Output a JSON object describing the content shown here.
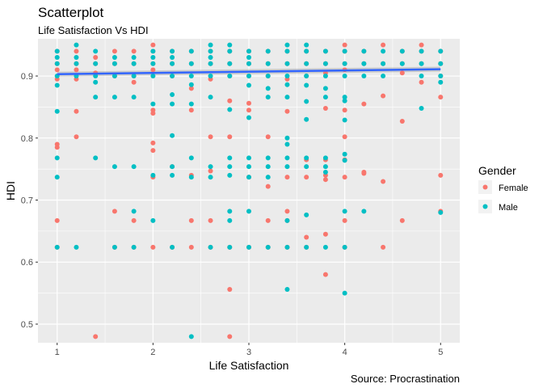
{
  "chart_data": {
    "type": "scatter",
    "title": "Scatterplot",
    "subtitle": "Life Satisfaction Vs HDI",
    "xlabel": "Life Satisfaction",
    "ylabel": "HDI",
    "caption": "Source: Procrastination",
    "xlim": [
      0.8,
      5.2
    ],
    "ylim": [
      0.47,
      0.96
    ],
    "x_ticks": [
      1,
      2,
      3,
      4,
      5
    ],
    "x_tick_labels": [
      "1",
      "2",
      "3",
      "4",
      "5"
    ],
    "y_ticks": [
      0.5,
      0.6,
      0.7,
      0.8,
      0.9
    ],
    "y_tick_labels": [
      "0.5",
      "0.6",
      "0.7",
      "0.8",
      "0.9"
    ],
    "grid": true,
    "legend": {
      "title": "Gender",
      "position": "right",
      "entries": [
        "Female",
        "Male"
      ]
    },
    "colors": {
      "Female": "#F8766D",
      "Male": "#00BFC4",
      "trend": "#3366FF",
      "panel": "#EBEBEB",
      "grid": "#FFFFFF"
    },
    "series": [
      {
        "name": "Female",
        "points": [
          [
            1,
            0.94
          ],
          [
            1,
            0.92
          ],
          [
            1,
            0.91
          ],
          [
            1,
            0.895
          ],
          [
            1,
            0.79
          ],
          [
            1,
            0.785
          ],
          [
            1,
            0.667
          ],
          [
            1,
            0.624
          ],
          [
            1.2,
            0.94
          ],
          [
            1.2,
            0.92
          ],
          [
            1.2,
            0.91
          ],
          [
            1.2,
            0.895
          ],
          [
            1.2,
            0.843
          ],
          [
            1.2,
            0.802
          ],
          [
            1.4,
            0.93
          ],
          [
            1.4,
            0.92
          ],
          [
            1.4,
            0.905
          ],
          [
            1.4,
            0.48
          ],
          [
            1.6,
            0.94
          ],
          [
            1.6,
            0.92
          ],
          [
            1.6,
            0.9
          ],
          [
            1.6,
            0.682
          ],
          [
            1.6,
            0.624
          ],
          [
            1.8,
            0.94
          ],
          [
            1.8,
            0.92
          ],
          [
            1.8,
            0.9
          ],
          [
            1.8,
            0.89
          ],
          [
            1.8,
            0.667
          ],
          [
            1.8,
            0.624
          ],
          [
            2,
            0.95
          ],
          [
            2,
            0.94
          ],
          [
            2,
            0.92
          ],
          [
            2,
            0.91
          ],
          [
            2,
            0.845
          ],
          [
            2,
            0.84
          ],
          [
            2,
            0.792
          ],
          [
            2,
            0.78
          ],
          [
            2,
            0.737
          ],
          [
            2,
            0.624
          ],
          [
            2.2,
            0.94
          ],
          [
            2.2,
            0.92
          ],
          [
            2.2,
            0.9
          ],
          [
            2.2,
            0.754
          ],
          [
            2.2,
            0.624
          ],
          [
            2.4,
            0.94
          ],
          [
            2.4,
            0.92
          ],
          [
            2.4,
            0.88
          ],
          [
            2.4,
            0.845
          ],
          [
            2.4,
            0.74
          ],
          [
            2.4,
            0.667
          ],
          [
            2.4,
            0.624
          ],
          [
            2.6,
            0.94
          ],
          [
            2.6,
            0.92
          ],
          [
            2.6,
            0.895
          ],
          [
            2.6,
            0.802
          ],
          [
            2.6,
            0.747
          ],
          [
            2.6,
            0.667
          ],
          [
            2.6,
            0.624
          ],
          [
            2.8,
            0.94
          ],
          [
            2.8,
            0.92
          ],
          [
            2.8,
            0.9
          ],
          [
            2.8,
            0.86
          ],
          [
            2.8,
            0.802
          ],
          [
            2.8,
            0.624
          ],
          [
            2.8,
            0.556
          ],
          [
            2.8,
            0.48
          ],
          [
            3,
            0.94
          ],
          [
            3,
            0.92
          ],
          [
            3,
            0.9
          ],
          [
            3,
            0.856
          ],
          [
            3,
            0.845
          ],
          [
            3,
            0.737
          ],
          [
            3,
            0.624
          ],
          [
            3.2,
            0.94
          ],
          [
            3.2,
            0.92
          ],
          [
            3.2,
            0.9
          ],
          [
            3.2,
            0.802
          ],
          [
            3.2,
            0.722
          ],
          [
            3.2,
            0.667
          ],
          [
            3.2,
            0.624
          ],
          [
            3.4,
            0.94
          ],
          [
            3.4,
            0.92
          ],
          [
            3.4,
            0.895
          ],
          [
            3.4,
            0.843
          ],
          [
            3.4,
            0.737
          ],
          [
            3.4,
            0.682
          ],
          [
            3.4,
            0.667
          ],
          [
            3.4,
            0.624
          ],
          [
            3.6,
            0.94
          ],
          [
            3.6,
            0.92
          ],
          [
            3.6,
            0.9
          ],
          [
            3.6,
            0.765
          ],
          [
            3.6,
            0.737
          ],
          [
            3.6,
            0.64
          ],
          [
            3.6,
            0.624
          ],
          [
            3.8,
            0.94
          ],
          [
            3.8,
            0.92
          ],
          [
            3.8,
            0.905
          ],
          [
            3.8,
            0.848
          ],
          [
            3.8,
            0.765
          ],
          [
            3.8,
            0.74
          ],
          [
            3.8,
            0.733
          ],
          [
            3.8,
            0.645
          ],
          [
            3.8,
            0.58
          ],
          [
            4,
            0.95
          ],
          [
            4,
            0.94
          ],
          [
            4,
            0.92
          ],
          [
            4,
            0.91
          ],
          [
            4,
            0.845
          ],
          [
            4,
            0.802
          ],
          [
            4,
            0.765
          ],
          [
            4,
            0.737
          ],
          [
            4,
            0.667
          ],
          [
            4,
            0.624
          ],
          [
            4.2,
            0.94
          ],
          [
            4.2,
            0.92
          ],
          [
            4.2,
            0.855
          ],
          [
            4.2,
            0.745
          ],
          [
            4.2,
            0.743
          ],
          [
            4.4,
            0.95
          ],
          [
            4.4,
            0.92
          ],
          [
            4.4,
            0.868
          ],
          [
            4.4,
            0.73
          ],
          [
            4.4,
            0.624
          ],
          [
            4.6,
            0.94
          ],
          [
            4.6,
            0.92
          ],
          [
            4.6,
            0.905
          ],
          [
            4.6,
            0.827
          ],
          [
            4.6,
            0.667
          ],
          [
            4.8,
            0.95
          ],
          [
            4.8,
            0.94
          ],
          [
            4.8,
            0.92
          ],
          [
            4.8,
            0.89
          ],
          [
            5,
            0.94
          ],
          [
            5,
            0.92
          ],
          [
            5,
            0.9
          ],
          [
            5,
            0.866
          ],
          [
            5,
            0.74
          ],
          [
            5,
            0.682
          ]
        ]
      },
      {
        "name": "Male",
        "points": [
          [
            1,
            0.94
          ],
          [
            1,
            0.93
          ],
          [
            1,
            0.92
          ],
          [
            1,
            0.9
          ],
          [
            1,
            0.885
          ],
          [
            1,
            0.843
          ],
          [
            1,
            0.768
          ],
          [
            1,
            0.737
          ],
          [
            1,
            0.624
          ],
          [
            1.2,
            0.95
          ],
          [
            1.2,
            0.93
          ],
          [
            1.2,
            0.92
          ],
          [
            1.2,
            0.9
          ],
          [
            1.2,
            0.624
          ],
          [
            1.4,
            0.94
          ],
          [
            1.4,
            0.92
          ],
          [
            1.4,
            0.9
          ],
          [
            1.4,
            0.89
          ],
          [
            1.4,
            0.866
          ],
          [
            1.4,
            0.768
          ],
          [
            1.6,
            0.93
          ],
          [
            1.6,
            0.92
          ],
          [
            1.6,
            0.9
          ],
          [
            1.6,
            0.866
          ],
          [
            1.6,
            0.754
          ],
          [
            1.6,
            0.624
          ],
          [
            1.8,
            0.93
          ],
          [
            1.8,
            0.92
          ],
          [
            1.8,
            0.9
          ],
          [
            1.8,
            0.866
          ],
          [
            1.8,
            0.754
          ],
          [
            1.8,
            0.682
          ],
          [
            1.8,
            0.624
          ],
          [
            2,
            0.94
          ],
          [
            2,
            0.93
          ],
          [
            2,
            0.92
          ],
          [
            2,
            0.9
          ],
          [
            2,
            0.855
          ],
          [
            2,
            0.74
          ],
          [
            2,
            0.667
          ],
          [
            2.2,
            0.94
          ],
          [
            2.2,
            0.93
          ],
          [
            2.2,
            0.92
          ],
          [
            2.2,
            0.9
          ],
          [
            2.2,
            0.87
          ],
          [
            2.2,
            0.855
          ],
          [
            2.2,
            0.804
          ],
          [
            2.2,
            0.754
          ],
          [
            2.2,
            0.74
          ],
          [
            2.2,
            0.624
          ],
          [
            2.4,
            0.94
          ],
          [
            2.4,
            0.92
          ],
          [
            2.4,
            0.9
          ],
          [
            2.4,
            0.886
          ],
          [
            2.4,
            0.855
          ],
          [
            2.4,
            0.768
          ],
          [
            2.4,
            0.737
          ],
          [
            2.4,
            0.48
          ],
          [
            2.6,
            0.95
          ],
          [
            2.6,
            0.94
          ],
          [
            2.6,
            0.93
          ],
          [
            2.6,
            0.92
          ],
          [
            2.6,
            0.9
          ],
          [
            2.6,
            0.866
          ],
          [
            2.6,
            0.754
          ],
          [
            2.6,
            0.737
          ],
          [
            2.6,
            0.624
          ],
          [
            2.8,
            0.95
          ],
          [
            2.8,
            0.94
          ],
          [
            2.8,
            0.92
          ],
          [
            2.8,
            0.9
          ],
          [
            2.8,
            0.846
          ],
          [
            2.8,
            0.768
          ],
          [
            2.8,
            0.754
          ],
          [
            2.8,
            0.74
          ],
          [
            2.8,
            0.682
          ],
          [
            2.8,
            0.667
          ],
          [
            2.8,
            0.624
          ],
          [
            3,
            0.94
          ],
          [
            3,
            0.93
          ],
          [
            3,
            0.92
          ],
          [
            3,
            0.9
          ],
          [
            3,
            0.885
          ],
          [
            3,
            0.833
          ],
          [
            3,
            0.768
          ],
          [
            3,
            0.754
          ],
          [
            3,
            0.737
          ],
          [
            3,
            0.682
          ],
          [
            3,
            0.624
          ],
          [
            3.2,
            0.94
          ],
          [
            3.2,
            0.92
          ],
          [
            3.2,
            0.9
          ],
          [
            3.2,
            0.88
          ],
          [
            3.2,
            0.866
          ],
          [
            3.2,
            0.768
          ],
          [
            3.2,
            0.754
          ],
          [
            3.2,
            0.737
          ],
          [
            3.2,
            0.624
          ],
          [
            3.4,
            0.95
          ],
          [
            3.4,
            0.94
          ],
          [
            3.4,
            0.92
          ],
          [
            3.4,
            0.9
          ],
          [
            3.4,
            0.886
          ],
          [
            3.4,
            0.866
          ],
          [
            3.4,
            0.8
          ],
          [
            3.4,
            0.79
          ],
          [
            3.4,
            0.768
          ],
          [
            3.4,
            0.754
          ],
          [
            3.4,
            0.667
          ],
          [
            3.4,
            0.624
          ],
          [
            3.4,
            0.556
          ],
          [
            3.6,
            0.95
          ],
          [
            3.6,
            0.94
          ],
          [
            3.6,
            0.92
          ],
          [
            3.6,
            0.9
          ],
          [
            3.6,
            0.885
          ],
          [
            3.6,
            0.859
          ],
          [
            3.6,
            0.83
          ],
          [
            3.6,
            0.768
          ],
          [
            3.6,
            0.754
          ],
          [
            3.6,
            0.676
          ],
          [
            3.6,
            0.624
          ],
          [
            3.8,
            0.94
          ],
          [
            3.8,
            0.92
          ],
          [
            3.8,
            0.9
          ],
          [
            3.8,
            0.88
          ],
          [
            3.8,
            0.866
          ],
          [
            3.8,
            0.768
          ],
          [
            3.8,
            0.754
          ],
          [
            3.8,
            0.745
          ],
          [
            3.8,
            0.624
          ],
          [
            4,
            0.94
          ],
          [
            4,
            0.92
          ],
          [
            4,
            0.9
          ],
          [
            4,
            0.866
          ],
          [
            4,
            0.86
          ],
          [
            4,
            0.829
          ],
          [
            4,
            0.774
          ],
          [
            4,
            0.764
          ],
          [
            4,
            0.682
          ],
          [
            4,
            0.624
          ],
          [
            4,
            0.55
          ],
          [
            4.2,
            0.94
          ],
          [
            4.2,
            0.92
          ],
          [
            4.2,
            0.9
          ],
          [
            4.2,
            0.682
          ],
          [
            4.4,
            0.94
          ],
          [
            4.4,
            0.92
          ],
          [
            4.4,
            0.9
          ],
          [
            4.6,
            0.94
          ],
          [
            4.6,
            0.92
          ],
          [
            4.8,
            0.94
          ],
          [
            4.8,
            0.92
          ],
          [
            4.8,
            0.9
          ],
          [
            4.8,
            0.848
          ],
          [
            5,
            0.94
          ],
          [
            5,
            0.92
          ],
          [
            5,
            0.9
          ],
          [
            5,
            0.89
          ],
          [
            5,
            0.68
          ]
        ]
      }
    ],
    "trend": {
      "method": "lm",
      "points": [
        [
          1,
          0.903
        ],
        [
          5,
          0.911
        ]
      ],
      "se_band": 0.004
    }
  }
}
